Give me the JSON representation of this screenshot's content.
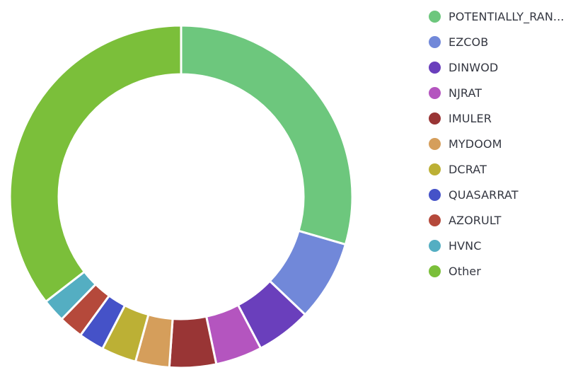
{
  "chart_data": {
    "type": "pie",
    "donut": true,
    "legend_position": "right",
    "title": "",
    "slices": [
      {
        "label": "POTENTIALLY_RAN...",
        "value": 29.5,
        "color": "#6dc77d"
      },
      {
        "label": "EZCOB",
        "value": 7.6,
        "color": "#7188d9"
      },
      {
        "label": "DINWOD",
        "value": 5.2,
        "color": "#6a3fbc"
      },
      {
        "label": "NJRAT",
        "value": 4.4,
        "color": "#b455bf"
      },
      {
        "label": "IMULER",
        "value": 4.4,
        "color": "#993535"
      },
      {
        "label": "MYDOOM",
        "value": 3.2,
        "color": "#d59e5b"
      },
      {
        "label": "DCRAT",
        "value": 3.3,
        "color": "#bcb035"
      },
      {
        "label": "QUASARRAT",
        "value": 2.4,
        "color": "#4552c8"
      },
      {
        "label": "AZORULT",
        "value": 2.3,
        "color": "#b5493b"
      },
      {
        "label": "HVNC",
        "value": 2.2,
        "color": "#54aec2"
      },
      {
        "label": "Other",
        "value": 35.5,
        "color": "#7bbf3a"
      }
    ]
  }
}
